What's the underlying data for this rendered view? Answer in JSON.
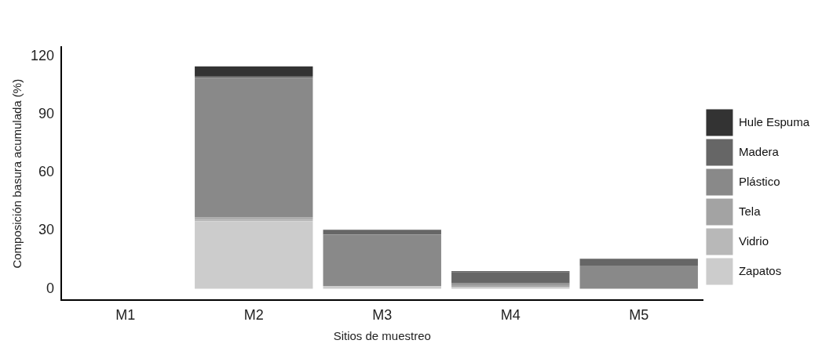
{
  "chart_data": {
    "type": "bar",
    "stacked": true,
    "xlabel": "Sitios de muestreo",
    "ylabel": "Composición basura acumulada (%)",
    "categories": [
      "M1",
      "M2",
      "M3",
      "M4",
      "M5"
    ],
    "series": [
      {
        "name": "Zapatos",
        "color": "#cccccc",
        "values": [
          0,
          35,
          1.5,
          1,
          0
        ]
      },
      {
        "name": "Vidrio",
        "color": "#b8b8b8",
        "values": [
          0,
          1,
          0,
          0,
          0
        ]
      },
      {
        "name": "Tela",
        "color": "#a3a3a3",
        "values": [
          0,
          1,
          0,
          1,
          0
        ]
      },
      {
        "name": "Plástico",
        "color": "#898989",
        "values": [
          0,
          72,
          26.5,
          1,
          12
        ]
      },
      {
        "name": "Madera",
        "color": "#666666",
        "values": [
          0,
          1,
          2.5,
          5.5,
          3.5
        ]
      },
      {
        "name": "Hule Espuma",
        "color": "#333333",
        "values": [
          0,
          5,
          0,
          0.5,
          0
        ]
      }
    ],
    "ylim": [
      -6,
      125
    ],
    "yticks": [
      0,
      30,
      60,
      90,
      120
    ],
    "grid": false,
    "legend": "right"
  }
}
